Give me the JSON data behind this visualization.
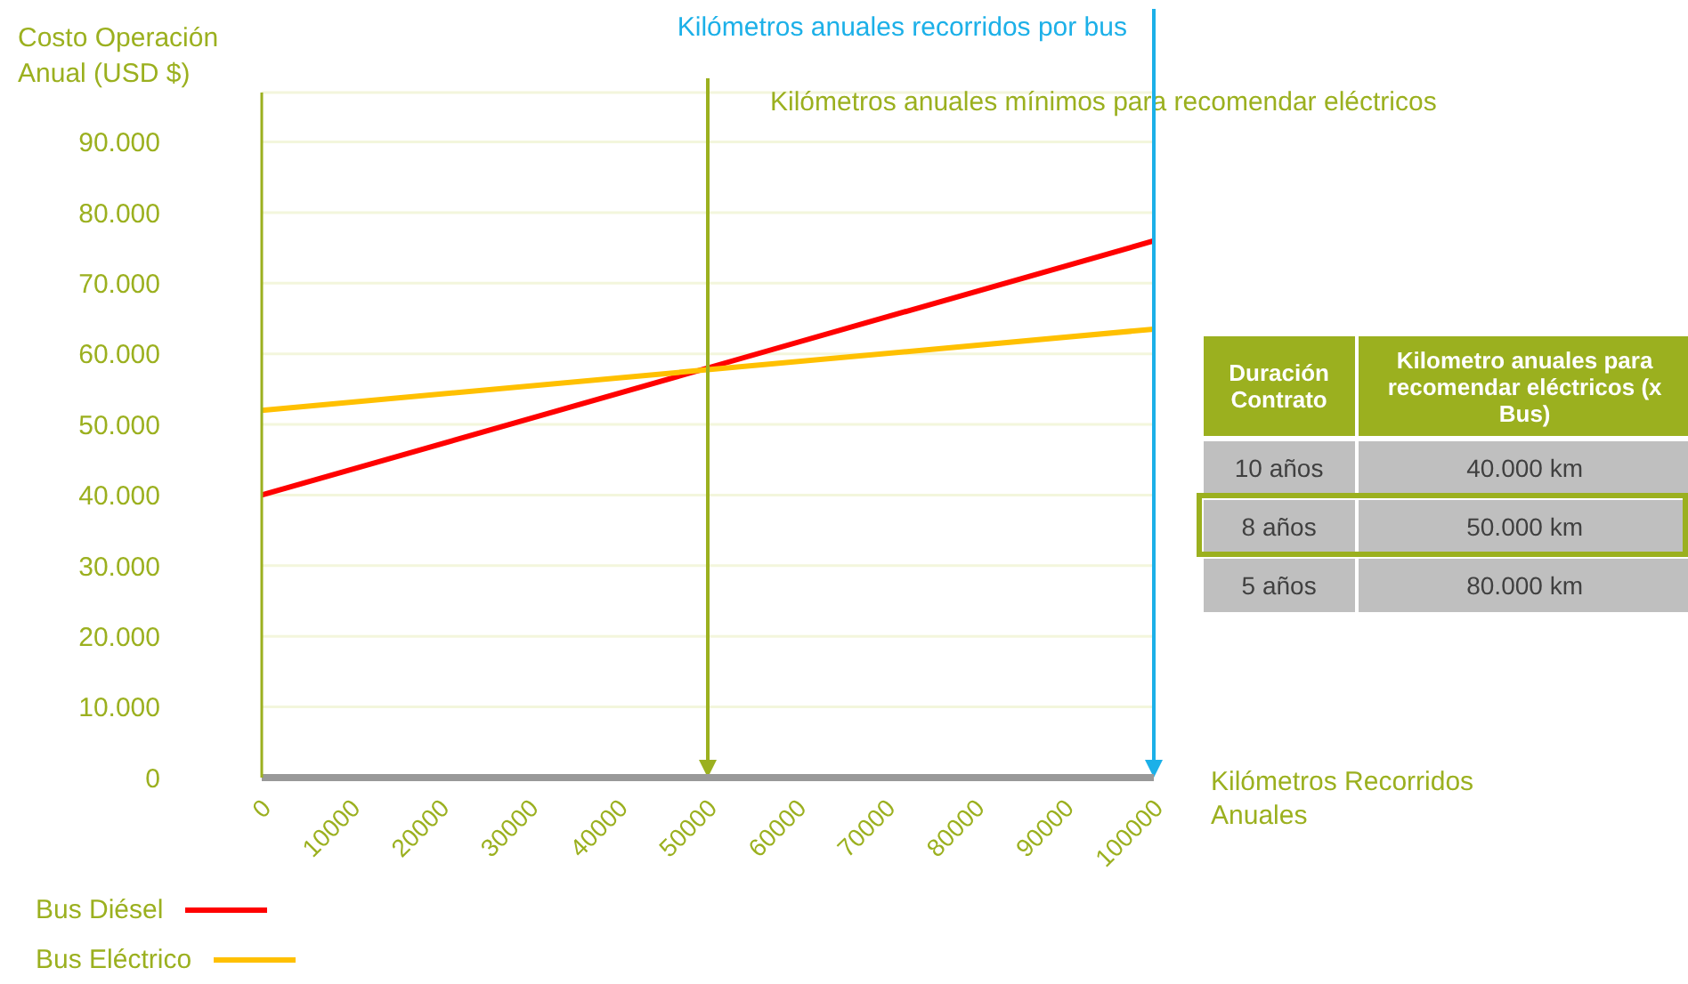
{
  "chart_data": {
    "type": "line",
    "ylabel": "Costo Operación Anual (USD $)",
    "xlabel": "Kilómetros Recorridos Anuales",
    "x": [
      0,
      100000
    ],
    "series": [
      {
        "name": "Bus Diésel",
        "color": "#ff0000",
        "values": [
          40000,
          76000
        ]
      },
      {
        "name": "Bus Eléctrico",
        "color": "#ffc000",
        "values": [
          52000,
          63500
        ]
      }
    ],
    "xlim": [
      0,
      100000
    ],
    "xticks": [
      0,
      10000,
      20000,
      30000,
      40000,
      50000,
      60000,
      70000,
      80000,
      90000,
      100000
    ],
    "ylim": [
      0,
      97000
    ],
    "yticks": [
      {
        "value": 0,
        "label": "0"
      },
      {
        "value": 10000,
        "label": "10.000"
      },
      {
        "value": 20000,
        "label": "20.000"
      },
      {
        "value": 30000,
        "label": "30.000"
      },
      {
        "value": 40000,
        "label": "40.000"
      },
      {
        "value": 50000,
        "label": "50.000"
      },
      {
        "value": 60000,
        "label": "60.000"
      },
      {
        "value": 70000,
        "label": "70.000"
      },
      {
        "value": 80000,
        "label": "80.000"
      },
      {
        "value": 90000,
        "label": "90.000"
      }
    ],
    "ref_lines": [
      {
        "axis": "x",
        "value": 50000,
        "label": "Kilómetros anuales mínimos para recomendar eléctricos",
        "color": "#9bb01f"
      },
      {
        "axis": "x",
        "value": 100000,
        "label": "Kilómetros anuales recorridos por bus",
        "color": "#1cb0e8"
      }
    ],
    "annotations": [
      "Duración Contrato",
      "Kilometro anuales para recomendar eléctricos (x Bus)",
      "10 años",
      "40.000 km",
      "8 años",
      "50.000 km",
      "5 años",
      "80.000 km"
    ],
    "grid": "y",
    "legend": "bottom left",
    "marker": "none",
    "line_style": "solid"
  }
}
